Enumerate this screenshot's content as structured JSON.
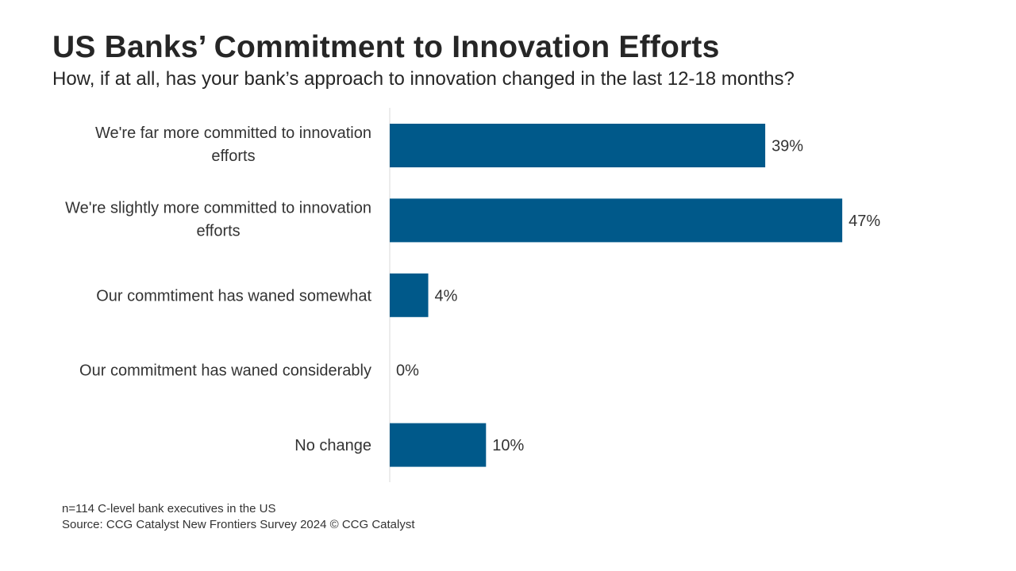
{
  "title": "US Banks’ Commitment to Innovation Efforts",
  "subtitle": "How, if at all, has your bank’s approach to innovation changed in the last 12-18 months?",
  "footnote": {
    "sample": "n=114 C-level bank executives in the US",
    "source": "Source: CCG Catalyst New Frontiers Survey 2024 © CCG Catalyst"
  },
  "chart_data": {
    "type": "bar",
    "orientation": "horizontal",
    "categories": [
      [
        "We're far more committed to innovation",
        "efforts"
      ],
      [
        "We're slightly more committed to innovation",
        "efforts"
      ],
      [
        "Our commtiment has waned somewhat"
      ],
      [
        "Our commitment has waned considerably"
      ],
      [
        "No change"
      ]
    ],
    "values": [
      39,
      47,
      4,
      0,
      10
    ],
    "value_labels": [
      "39%",
      "47%",
      "4%",
      "0%",
      "10%"
    ],
    "unit": "%",
    "xlim": [
      0,
      50
    ],
    "bar_color": "#00598a",
    "grid": false,
    "legend": "none"
  }
}
